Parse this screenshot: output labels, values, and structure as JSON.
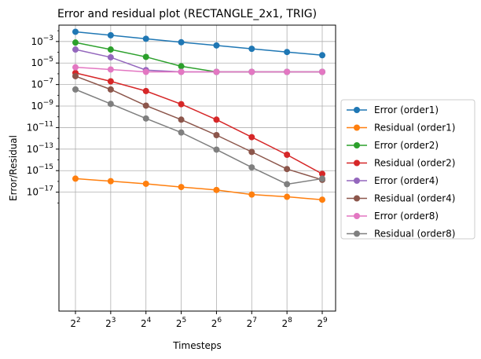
{
  "chart_data": {
    "type": "line",
    "title": "Error and residual plot (RECTANGLE_2x1, TRIG)",
    "xlabel": "Timesteps",
    "ylabel": "Error/Residual",
    "x_scale": "log2",
    "y_scale": "log10",
    "x": [
      4,
      8,
      16,
      32,
      64,
      128,
      256,
      512
    ],
    "x_tick_base": "2",
    "x_tick_exponents": [
      "2",
      "3",
      "4",
      "5",
      "6",
      "7",
      "8",
      "9"
    ],
    "y_tick_base": "10",
    "y_tick_exponents": [
      "−17",
      "−15",
      "−13",
      "−11",
      "−9",
      "−7",
      "−5",
      "−3"
    ],
    "grid": true,
    "legend_position": "outside-right",
    "series": [
      {
        "name": "Error (order1)",
        "color": "#1f77b4",
        "values": [
          0.008,
          0.0038,
          0.0018,
          0.00085,
          0.00043,
          0.00021,
          0.000105,
          5.3e-05
        ]
      },
      {
        "name": "Residual (order1)",
        "color": "#ff7f0e",
        "values": [
          1.8e-16,
          1.05e-16,
          6e-17,
          3e-17,
          1.6e-17,
          6e-18,
          3.7e-18,
          2e-18
        ]
      },
      {
        "name": "Error (order2)",
        "color": "#2ca02c",
        "values": [
          0.0008,
          0.00018,
          3.7e-05,
          5e-06,
          1.5e-06,
          1.5e-06,
          1.5e-06,
          1.5e-06
        ]
      },
      {
        "name": "Residual (order2)",
        "color": "#d62728",
        "values": [
          1.2e-06,
          2e-07,
          2.5e-08,
          1.5e-09,
          5.5e-11,
          1.3e-12,
          3e-14,
          5e-16
        ]
      },
      {
        "name": "Error (order4)",
        "color": "#9467bd",
        "values": [
          0.00018,
          3.4e-05,
          2.2e-06,
          1.5e-06,
          1.5e-06,
          1.5e-06,
          1.5e-06,
          1.5e-06
        ]
      },
      {
        "name": "Residual (order4)",
        "color": "#8c564b",
        "values": [
          6e-07,
          3.5e-08,
          1.1e-09,
          5.5e-11,
          2e-12,
          5.5e-14,
          1.4e-15,
          1.4e-16
        ]
      },
      {
        "name": "Error (order8)",
        "color": "#e377c2",
        "values": [
          4e-06,
          2.5e-06,
          1.5e-06,
          1.5e-06,
          1.5e-06,
          1.5e-06,
          1.5e-06,
          1.5e-06
        ]
      },
      {
        "name": "Residual (order8)",
        "color": "#7f7f7f",
        "values": [
          3.5e-08,
          1.6e-09,
          7e-11,
          3.5e-12,
          9e-14,
          2e-15,
          5.5e-17,
          1.8e-16
        ]
      }
    ]
  }
}
